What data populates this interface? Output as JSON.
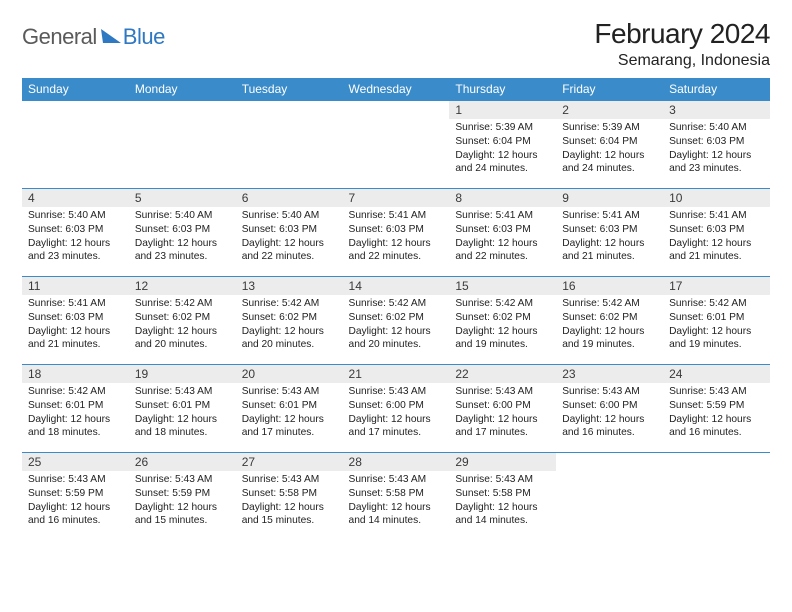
{
  "brand": {
    "word1": "General",
    "word2": "Blue"
  },
  "title": "February 2024",
  "location": "Semarang, Indonesia",
  "colors": {
    "header_bg": "#3a8bc9",
    "header_text": "#ffffff",
    "daynum_bg": "#ececec",
    "border": "#3a8bc9",
    "brand_blue": "#2f78c2",
    "brand_gray": "#5a5a5a",
    "page_bg": "#ffffff",
    "text": "#222222"
  },
  "typography": {
    "title_fontsize": 28,
    "location_fontsize": 16,
    "weekday_fontsize": 12,
    "daynum_fontsize": 12,
    "body_fontsize": 10.2
  },
  "weekdays": [
    "Sunday",
    "Monday",
    "Tuesday",
    "Wednesday",
    "Thursday",
    "Friday",
    "Saturday"
  ],
  "weeks": [
    [
      null,
      null,
      null,
      null,
      {
        "n": "1",
        "sunrise": "5:39 AM",
        "sunset": "6:04 PM",
        "daylight": "12 hours and 24 minutes."
      },
      {
        "n": "2",
        "sunrise": "5:39 AM",
        "sunset": "6:04 PM",
        "daylight": "12 hours and 24 minutes."
      },
      {
        "n": "3",
        "sunrise": "5:40 AM",
        "sunset": "6:03 PM",
        "daylight": "12 hours and 23 minutes."
      }
    ],
    [
      {
        "n": "4",
        "sunrise": "5:40 AM",
        "sunset": "6:03 PM",
        "daylight": "12 hours and 23 minutes."
      },
      {
        "n": "5",
        "sunrise": "5:40 AM",
        "sunset": "6:03 PM",
        "daylight": "12 hours and 23 minutes."
      },
      {
        "n": "6",
        "sunrise": "5:40 AM",
        "sunset": "6:03 PM",
        "daylight": "12 hours and 22 minutes."
      },
      {
        "n": "7",
        "sunrise": "5:41 AM",
        "sunset": "6:03 PM",
        "daylight": "12 hours and 22 minutes."
      },
      {
        "n": "8",
        "sunrise": "5:41 AM",
        "sunset": "6:03 PM",
        "daylight": "12 hours and 22 minutes."
      },
      {
        "n": "9",
        "sunrise": "5:41 AM",
        "sunset": "6:03 PM",
        "daylight": "12 hours and 21 minutes."
      },
      {
        "n": "10",
        "sunrise": "5:41 AM",
        "sunset": "6:03 PM",
        "daylight": "12 hours and 21 minutes."
      }
    ],
    [
      {
        "n": "11",
        "sunrise": "5:41 AM",
        "sunset": "6:03 PM",
        "daylight": "12 hours and 21 minutes."
      },
      {
        "n": "12",
        "sunrise": "5:42 AM",
        "sunset": "6:02 PM",
        "daylight": "12 hours and 20 minutes."
      },
      {
        "n": "13",
        "sunrise": "5:42 AM",
        "sunset": "6:02 PM",
        "daylight": "12 hours and 20 minutes."
      },
      {
        "n": "14",
        "sunrise": "5:42 AM",
        "sunset": "6:02 PM",
        "daylight": "12 hours and 20 minutes."
      },
      {
        "n": "15",
        "sunrise": "5:42 AM",
        "sunset": "6:02 PM",
        "daylight": "12 hours and 19 minutes."
      },
      {
        "n": "16",
        "sunrise": "5:42 AM",
        "sunset": "6:02 PM",
        "daylight": "12 hours and 19 minutes."
      },
      {
        "n": "17",
        "sunrise": "5:42 AM",
        "sunset": "6:01 PM",
        "daylight": "12 hours and 19 minutes."
      }
    ],
    [
      {
        "n": "18",
        "sunrise": "5:42 AM",
        "sunset": "6:01 PM",
        "daylight": "12 hours and 18 minutes."
      },
      {
        "n": "19",
        "sunrise": "5:43 AM",
        "sunset": "6:01 PM",
        "daylight": "12 hours and 18 minutes."
      },
      {
        "n": "20",
        "sunrise": "5:43 AM",
        "sunset": "6:01 PM",
        "daylight": "12 hours and 17 minutes."
      },
      {
        "n": "21",
        "sunrise": "5:43 AM",
        "sunset": "6:00 PM",
        "daylight": "12 hours and 17 minutes."
      },
      {
        "n": "22",
        "sunrise": "5:43 AM",
        "sunset": "6:00 PM",
        "daylight": "12 hours and 17 minutes."
      },
      {
        "n": "23",
        "sunrise": "5:43 AM",
        "sunset": "6:00 PM",
        "daylight": "12 hours and 16 minutes."
      },
      {
        "n": "24",
        "sunrise": "5:43 AM",
        "sunset": "5:59 PM",
        "daylight": "12 hours and 16 minutes."
      }
    ],
    [
      {
        "n": "25",
        "sunrise": "5:43 AM",
        "sunset": "5:59 PM",
        "daylight": "12 hours and 16 minutes."
      },
      {
        "n": "26",
        "sunrise": "5:43 AM",
        "sunset": "5:59 PM",
        "daylight": "12 hours and 15 minutes."
      },
      {
        "n": "27",
        "sunrise": "5:43 AM",
        "sunset": "5:58 PM",
        "daylight": "12 hours and 15 minutes."
      },
      {
        "n": "28",
        "sunrise": "5:43 AM",
        "sunset": "5:58 PM",
        "daylight": "12 hours and 14 minutes."
      },
      {
        "n": "29",
        "sunrise": "5:43 AM",
        "sunset": "5:58 PM",
        "daylight": "12 hours and 14 minutes."
      },
      null,
      null
    ]
  ],
  "labels": {
    "sunrise": "Sunrise:",
    "sunset": "Sunset:",
    "daylight": "Daylight:"
  }
}
